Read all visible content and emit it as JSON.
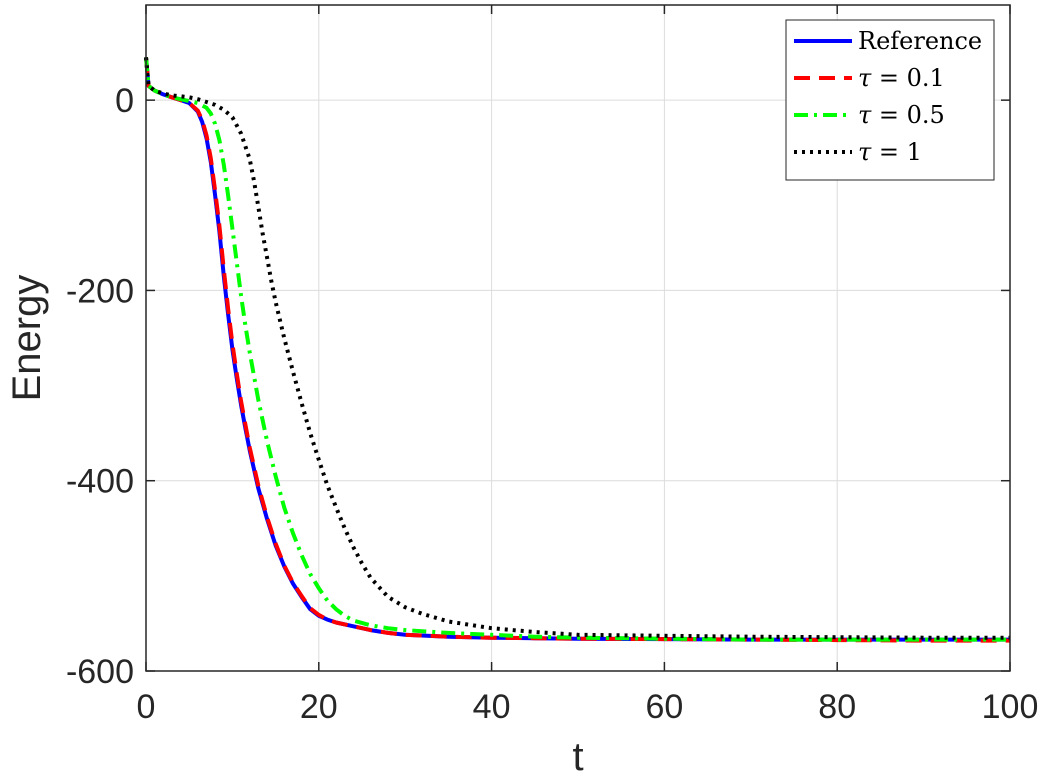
{
  "chart_data": {
    "type": "line",
    "title": "",
    "xlabel": "t",
    "ylabel": "Energy",
    "xlim": [
      0,
      100
    ],
    "ylim": [
      -600,
      100
    ],
    "xticks": [
      0,
      20,
      40,
      60,
      80,
      100
    ],
    "yticks": [
      -600,
      -400,
      -200,
      0
    ],
    "xtick_labels": [
      "0",
      "20",
      "40",
      "60",
      "80",
      "100"
    ],
    "ytick_labels": [
      "-600",
      "-400",
      "-200",
      "0"
    ],
    "grid": true,
    "legend_position": "top-right",
    "series": [
      {
        "name": "Reference",
        "legend_symbol": "",
        "legend_value": "",
        "color": "#0000ff",
        "style": "solid",
        "x": [
          0,
          0.3,
          1,
          2,
          3,
          4,
          5,
          6,
          6.5,
          7,
          7.5,
          8,
          8.5,
          9,
          9.5,
          10,
          10.5,
          11,
          11.5,
          12,
          13,
          14,
          15,
          16,
          17,
          18,
          19,
          20,
          21,
          22,
          24,
          26,
          28,
          30,
          35,
          40,
          45,
          50,
          60,
          70,
          80,
          90,
          100
        ],
        "y": [
          45,
          15,
          10,
          6,
          3,
          0,
          -3,
          -12,
          -23,
          -40,
          -65,
          -100,
          -138,
          -185,
          -225,
          -262,
          -292,
          -320,
          -345,
          -368,
          -408,
          -440,
          -468,
          -490,
          -508,
          -522,
          -535,
          -542,
          -546,
          -549,
          -553,
          -557,
          -560,
          -562,
          -564,
          -565,
          -565.5,
          -566,
          -566.5,
          -567,
          -567,
          -567,
          -567
        ]
      },
      {
        "name": "",
        "legend_symbol": "τ",
        "legend_value": "= 0.1",
        "color": "#ff0000",
        "style": "dashed",
        "x": [
          0,
          0.3,
          1,
          2,
          3,
          4,
          5,
          6,
          6.5,
          7,
          7.5,
          8,
          8.5,
          9,
          9.5,
          10,
          10.5,
          11,
          11.5,
          12,
          13,
          14,
          15,
          16,
          17,
          18,
          19,
          20,
          21,
          22,
          24,
          26,
          28,
          30,
          35,
          40,
          45,
          50,
          60,
          70,
          80,
          90,
          100
        ],
        "y": [
          45,
          15,
          10,
          6,
          3,
          0,
          -3,
          -11,
          -21,
          -37,
          -61,
          -95,
          -132,
          -178,
          -219,
          -256,
          -287,
          -316,
          -341,
          -365,
          -405,
          -438,
          -466,
          -489,
          -507,
          -521,
          -534,
          -541,
          -546,
          -549,
          -553,
          -557,
          -560,
          -562,
          -564,
          -565,
          -565.5,
          -566,
          -566.5,
          -567,
          -567.5,
          -568,
          -568
        ]
      },
      {
        "name": "",
        "legend_symbol": "τ",
        "legend_value": "= 0.5",
        "color": "#00ff00",
        "style": "dashdot",
        "x": [
          0,
          0.3,
          1,
          2,
          3,
          4,
          5,
          6,
          7,
          7.5,
          8,
          8.5,
          9,
          9.5,
          10,
          10.5,
          11,
          11.5,
          12,
          13,
          14,
          15,
          16,
          17,
          18,
          19,
          20,
          21,
          22,
          23,
          24,
          26,
          28,
          30,
          35,
          40,
          45,
          50,
          60,
          70,
          80,
          90,
          100
        ],
        "y": [
          45,
          15,
          10,
          6,
          3,
          1,
          -1,
          -3,
          -8,
          -14,
          -25,
          -42,
          -68,
          -100,
          -135,
          -170,
          -205,
          -237,
          -265,
          -315,
          -358,
          -395,
          -428,
          -455,
          -478,
          -498,
          -513,
          -526,
          -535,
          -542,
          -547,
          -552,
          -555,
          -557,
          -560,
          -562,
          -564,
          -565,
          -566,
          -567,
          -567,
          -567,
          -567
        ]
      },
      {
        "name": "",
        "legend_symbol": "τ",
        "legend_value": "= 1",
        "color": "#000000",
        "style": "dotted",
        "x": [
          0,
          0.3,
          1,
          2,
          3,
          4,
          5,
          6,
          7,
          8,
          9,
          10,
          11,
          12,
          12.5,
          13,
          13.5,
          14,
          14.5,
          15,
          16,
          17,
          18,
          19,
          20,
          21,
          22,
          23,
          24,
          25,
          26,
          28,
          30,
          32,
          35,
          40,
          45,
          50,
          60,
          70,
          80,
          90,
          100
        ],
        "y": [
          45,
          15,
          10,
          7,
          5,
          4,
          3,
          1,
          -2,
          -5,
          -10,
          -18,
          -35,
          -62,
          -85,
          -112,
          -140,
          -165,
          -190,
          -212,
          -250,
          -285,
          -318,
          -350,
          -378,
          -405,
          -428,
          -450,
          -470,
          -487,
          -502,
          -522,
          -533,
          -540,
          -548,
          -555,
          -559,
          -562,
          -563,
          -564,
          -564.5,
          -565,
          -565
        ]
      }
    ]
  }
}
